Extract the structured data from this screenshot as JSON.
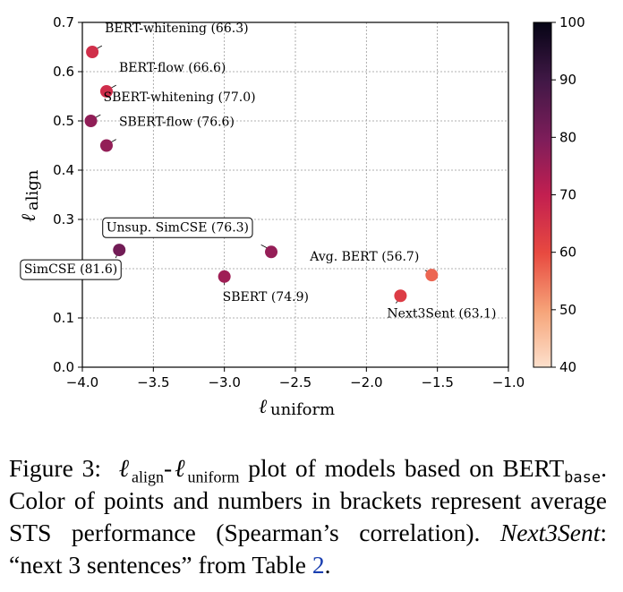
{
  "chart_data": {
    "type": "scatter",
    "xlabel": "uniform",
    "ylabel": "align",
    "xlim": [
      -4.0,
      -1.0
    ],
    "ylim": [
      0.0,
      0.7
    ],
    "x_ticks": [
      -4.0,
      -3.5,
      -3.0,
      -2.5,
      -2.0,
      -1.5,
      -1.0
    ],
    "y_ticks": [
      0.0,
      0.1,
      0.2,
      0.3,
      0.4,
      0.5,
      0.6,
      0.7
    ],
    "x_tick_labels": [
      "−4.0",
      "−3.5",
      "−3.0",
      "−2.5",
      "−2.0",
      "−1.5",
      "−1.0"
    ],
    "y_tick_labels": [
      "0.0",
      "0.1",
      "0.2",
      "0.3",
      "0.4",
      "0.5",
      "0.6",
      "0.7"
    ],
    "grid": true,
    "colorbar": {
      "min": 40,
      "max": 100,
      "ticks": [
        40,
        50,
        60,
        70,
        80,
        90,
        100
      ],
      "tick_labels": [
        "40",
        "50",
        "60",
        "70",
        "80",
        "90",
        "100"
      ]
    },
    "points": [
      {
        "name": "BERT-whitening",
        "x": -3.93,
        "y": 0.64,
        "score": 66.3,
        "label": "BERT-whitening (66.3)",
        "boxed": false,
        "anchor": "upper-right"
      },
      {
        "name": "BERT-flow",
        "x": -3.83,
        "y": 0.56,
        "score": 66.6,
        "label": "BERT-flow (66.6)",
        "boxed": false,
        "anchor": "upper-right"
      },
      {
        "name": "SBERT-whitening",
        "x": -3.94,
        "y": 0.5,
        "score": 77.0,
        "label": "SBERT-whitening (77.0)",
        "boxed": false,
        "anchor": "upper-right"
      },
      {
        "name": "SBERT-flow",
        "x": -3.83,
        "y": 0.45,
        "score": 76.6,
        "label": "SBERT-flow (76.6)",
        "boxed": false,
        "anchor": "upper-right"
      },
      {
        "name": "Unsup. SimCSE",
        "x": -2.67,
        "y": 0.234,
        "score": 76.3,
        "label": "Unsup. SimCSE (76.3)",
        "boxed": true,
        "anchor": "upper-left"
      },
      {
        "name": "SimCSE",
        "x": -3.74,
        "y": 0.238,
        "score": 81.6,
        "label": "SimCSE (81.6)",
        "boxed": true,
        "anchor": "lower-left"
      },
      {
        "name": "SBERT",
        "x": -3.0,
        "y": 0.184,
        "score": 74.9,
        "label": "SBERT (74.9)",
        "boxed": false,
        "anchor": "lower"
      },
      {
        "name": "Avg. BERT",
        "x": -1.54,
        "y": 0.187,
        "score": 56.7,
        "label": "Avg. BERT (56.7)",
        "boxed": false,
        "anchor": "upper-left"
      },
      {
        "name": "Next3Sent",
        "x": -1.76,
        "y": 0.145,
        "score": 63.1,
        "label": "Next3Sent (63.1)",
        "boxed": false,
        "anchor": "lower"
      }
    ]
  },
  "caption": {
    "figure_label": "Figure 3:",
    "symbol_l": "ℓ",
    "sub_align": "align",
    "dash": "-",
    "sub_uniform": "uniform",
    "text_1": " plot of models based on BERT",
    "sub_base": "base",
    "text_2": ". Color of points and numbers in brackets represent average STS performance (Spearman’s correlation). ",
    "next3sent": "Next3Sent",
    "text_3": ": “next 3 sentences” from Table ",
    "table_ref": "2",
    "text_4": "."
  }
}
